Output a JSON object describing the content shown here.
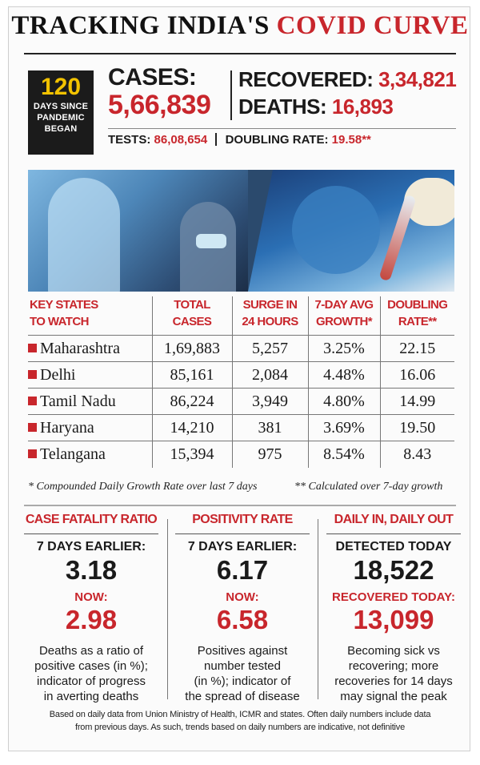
{
  "title": {
    "part1": "TRACKING INDIA'S",
    "part2": "COVID CURVE"
  },
  "days": {
    "number": "120",
    "label_line1": "DAYS SINCE",
    "label_line2": "PANDEMIC",
    "label_line3": "BEGAN"
  },
  "headline": {
    "cases_label": "CASES:",
    "cases_value": "5,66,839",
    "recovered_label": "RECOVERED:",
    "recovered_value": "3,34,821",
    "deaths_label": "DEATHS:",
    "deaths_value": "16,893",
    "tests_label": "TESTS:",
    "tests_value": "86,08,654",
    "doubling_label": "DOUBLING RATE:",
    "doubling_value": "19.58**"
  },
  "table": {
    "headers": [
      {
        "line1": "KEY STATES",
        "line2": "TO WATCH"
      },
      {
        "line1": "TOTAL",
        "line2": "CASES"
      },
      {
        "line1": "SURGE IN",
        "line2": "24 HOURS"
      },
      {
        "line1": "7-DAY AVG",
        "line2": "GROWTH*"
      },
      {
        "line1": "DOUBLING",
        "line2": "RATE**"
      }
    ],
    "rows": [
      {
        "state": "Maharashtra",
        "total": "1,69,883",
        "surge": "5,257",
        "growth": "3.25%",
        "doubling": "22.15"
      },
      {
        "state": "Delhi",
        "total": "85,161",
        "surge": "2,084",
        "growth": "4.48%",
        "doubling": "16.06"
      },
      {
        "state": "Tamil Nadu",
        "total": "86,224",
        "surge": "3,949",
        "growth": "4.80%",
        "doubling": "14.99"
      },
      {
        "state": "Haryana",
        "total": "14,210",
        "surge": "381",
        "growth": "3.69%",
        "doubling": "19.50"
      },
      {
        "state": "Telangana",
        "total": "15,394",
        "surge": "975",
        "growth": "8.54%",
        "doubling": "8.43"
      }
    ]
  },
  "footnotes": {
    "left": "* Compounded Daily Growth Rate over last 7 days",
    "right": "** Calculated over 7-day growth"
  },
  "panels": [
    {
      "header": "CASE FATALITY RATIO",
      "before_label": "7 DAYS EARLIER:",
      "before_value": "3.18",
      "now_label": "NOW:",
      "now_value": "2.98",
      "desc_line1": "Deaths as a ratio of",
      "desc_line2": "positive cases (in %);",
      "desc_line3": "indicator of progress",
      "desc_line4": "in averting deaths"
    },
    {
      "header": "POSITIVITY RATE",
      "before_label": "7 DAYS EARLIER:",
      "before_value": "6.17",
      "now_label": "NOW:",
      "now_value": "6.58",
      "desc_line1": "Positives against",
      "desc_line2": "number tested",
      "desc_line3": "(in %); indicator of",
      "desc_line4": "the spread of disease"
    },
    {
      "header": "DAILY IN, DAILY OUT",
      "before_label": "DETECTED TODAY",
      "before_value": "18,522",
      "now_label": "RECOVERED TODAY:",
      "now_value": "13,099",
      "desc_line1": "Becoming sick vs",
      "desc_line2": "recovering; more",
      "desc_line3": "recoveries for 14 days",
      "desc_line4": "may signal the peak"
    }
  ],
  "source": {
    "line1": "Based on daily data from Union Ministry of Health, ICMR and states. Often daily numbers include data",
    "line2": "from previous days. As such, trends based on daily numbers are indicative, not definitive"
  },
  "colors": {
    "accent_red": "#c8262c",
    "days_yellow": "#f2c200",
    "dark_box": "#1b1b1b"
  }
}
